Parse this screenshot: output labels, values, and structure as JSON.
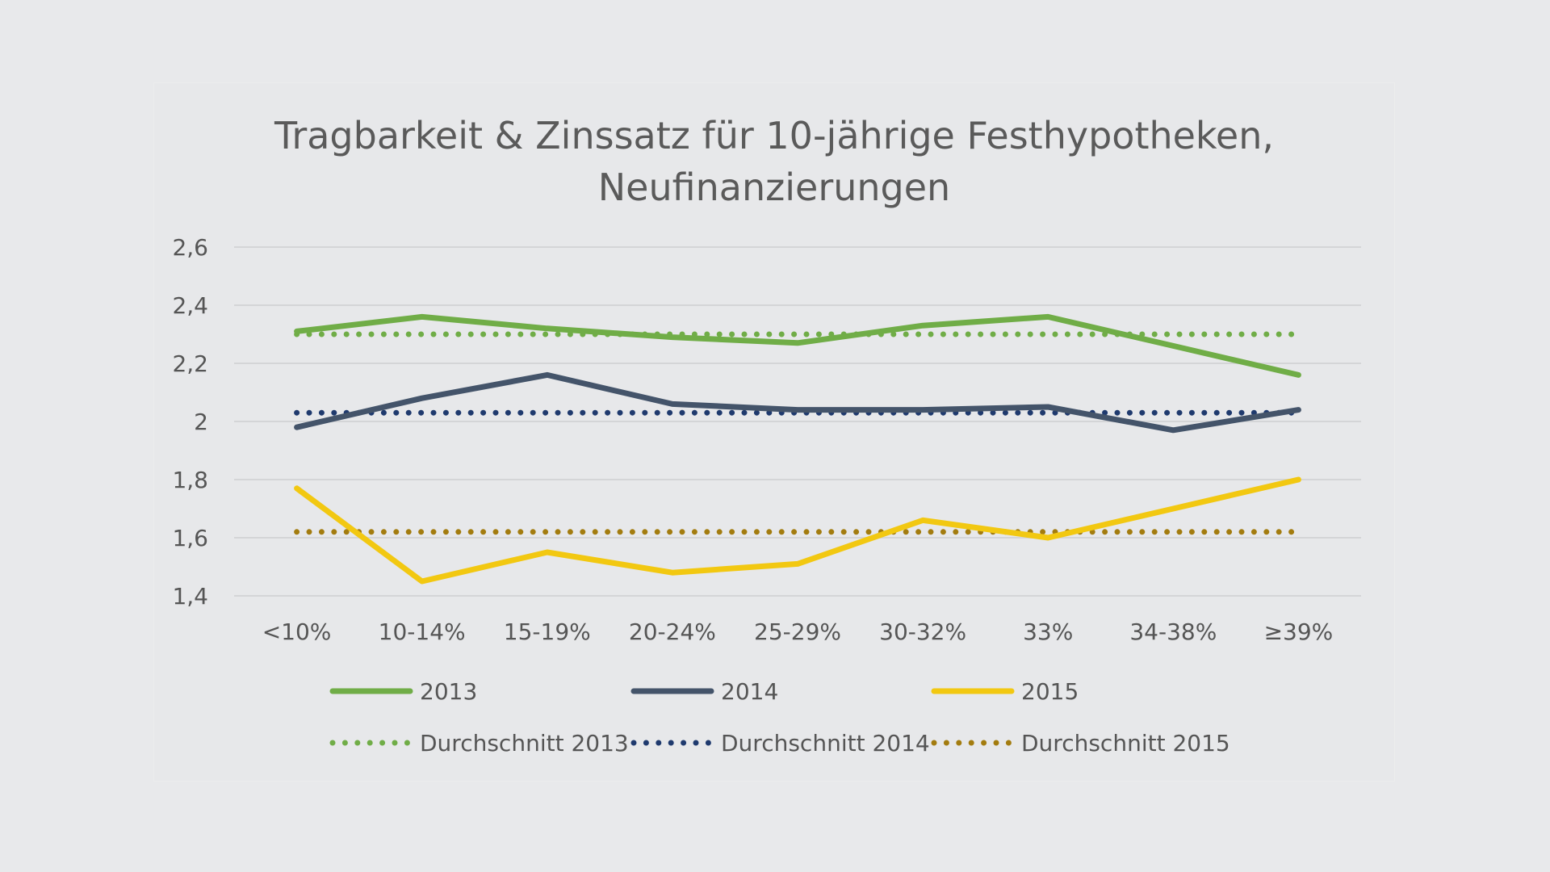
{
  "chart_data": {
    "type": "line",
    "title_lines": [
      "Tragbarkeit & Zinssatz für 10-jährige Festhypotheken,",
      "Neufinanzierungen"
    ],
    "xlabel": "",
    "ylabel": "",
    "categories": [
      "<10%",
      "10-14%",
      "15-19%",
      "20-24%",
      "25-29%",
      "30-32%",
      "33%",
      "34-38%",
      "≥39%"
    ],
    "y_ticks": [
      "1,4",
      "1,6",
      "1,8",
      "2",
      "2,2",
      "2,4",
      "2,6"
    ],
    "ylim": [
      1.4,
      2.6
    ],
    "grid": true,
    "legend_position": "bottom",
    "series": [
      {
        "name": "2013",
        "style": "solid",
        "color": "#70ad47",
        "values": [
          2.31,
          2.36,
          2.32,
          2.29,
          2.27,
          2.33,
          2.36,
          2.26,
          2.16
        ]
      },
      {
        "name": "2014",
        "style": "solid",
        "color": "#44546a",
        "values": [
          1.98,
          2.08,
          2.16,
          2.06,
          2.04,
          2.04,
          2.05,
          1.97,
          2.04
        ]
      },
      {
        "name": "2015",
        "style": "solid",
        "color": "#f2c811",
        "values": [
          1.77,
          1.45,
          1.55,
          1.48,
          1.51,
          1.66,
          1.6,
          1.7,
          1.8
        ]
      },
      {
        "name": "Durchschnitt 2013",
        "style": "dotted",
        "color": "#70ad47",
        "values": [
          2.3,
          2.3,
          2.3,
          2.3,
          2.3,
          2.3,
          2.3,
          2.3,
          2.3
        ]
      },
      {
        "name": "Durchschnitt 2014",
        "style": "dotted",
        "color": "#1f3a6e",
        "values": [
          2.03,
          2.03,
          2.03,
          2.03,
          2.03,
          2.03,
          2.03,
          2.03,
          2.03
        ]
      },
      {
        "name": "Durchschnitt 2015",
        "style": "dotted",
        "color": "#a37c0f",
        "values": [
          1.62,
          1.62,
          1.62,
          1.62,
          1.62,
          1.62,
          1.62,
          1.62,
          1.62
        ]
      }
    ]
  }
}
